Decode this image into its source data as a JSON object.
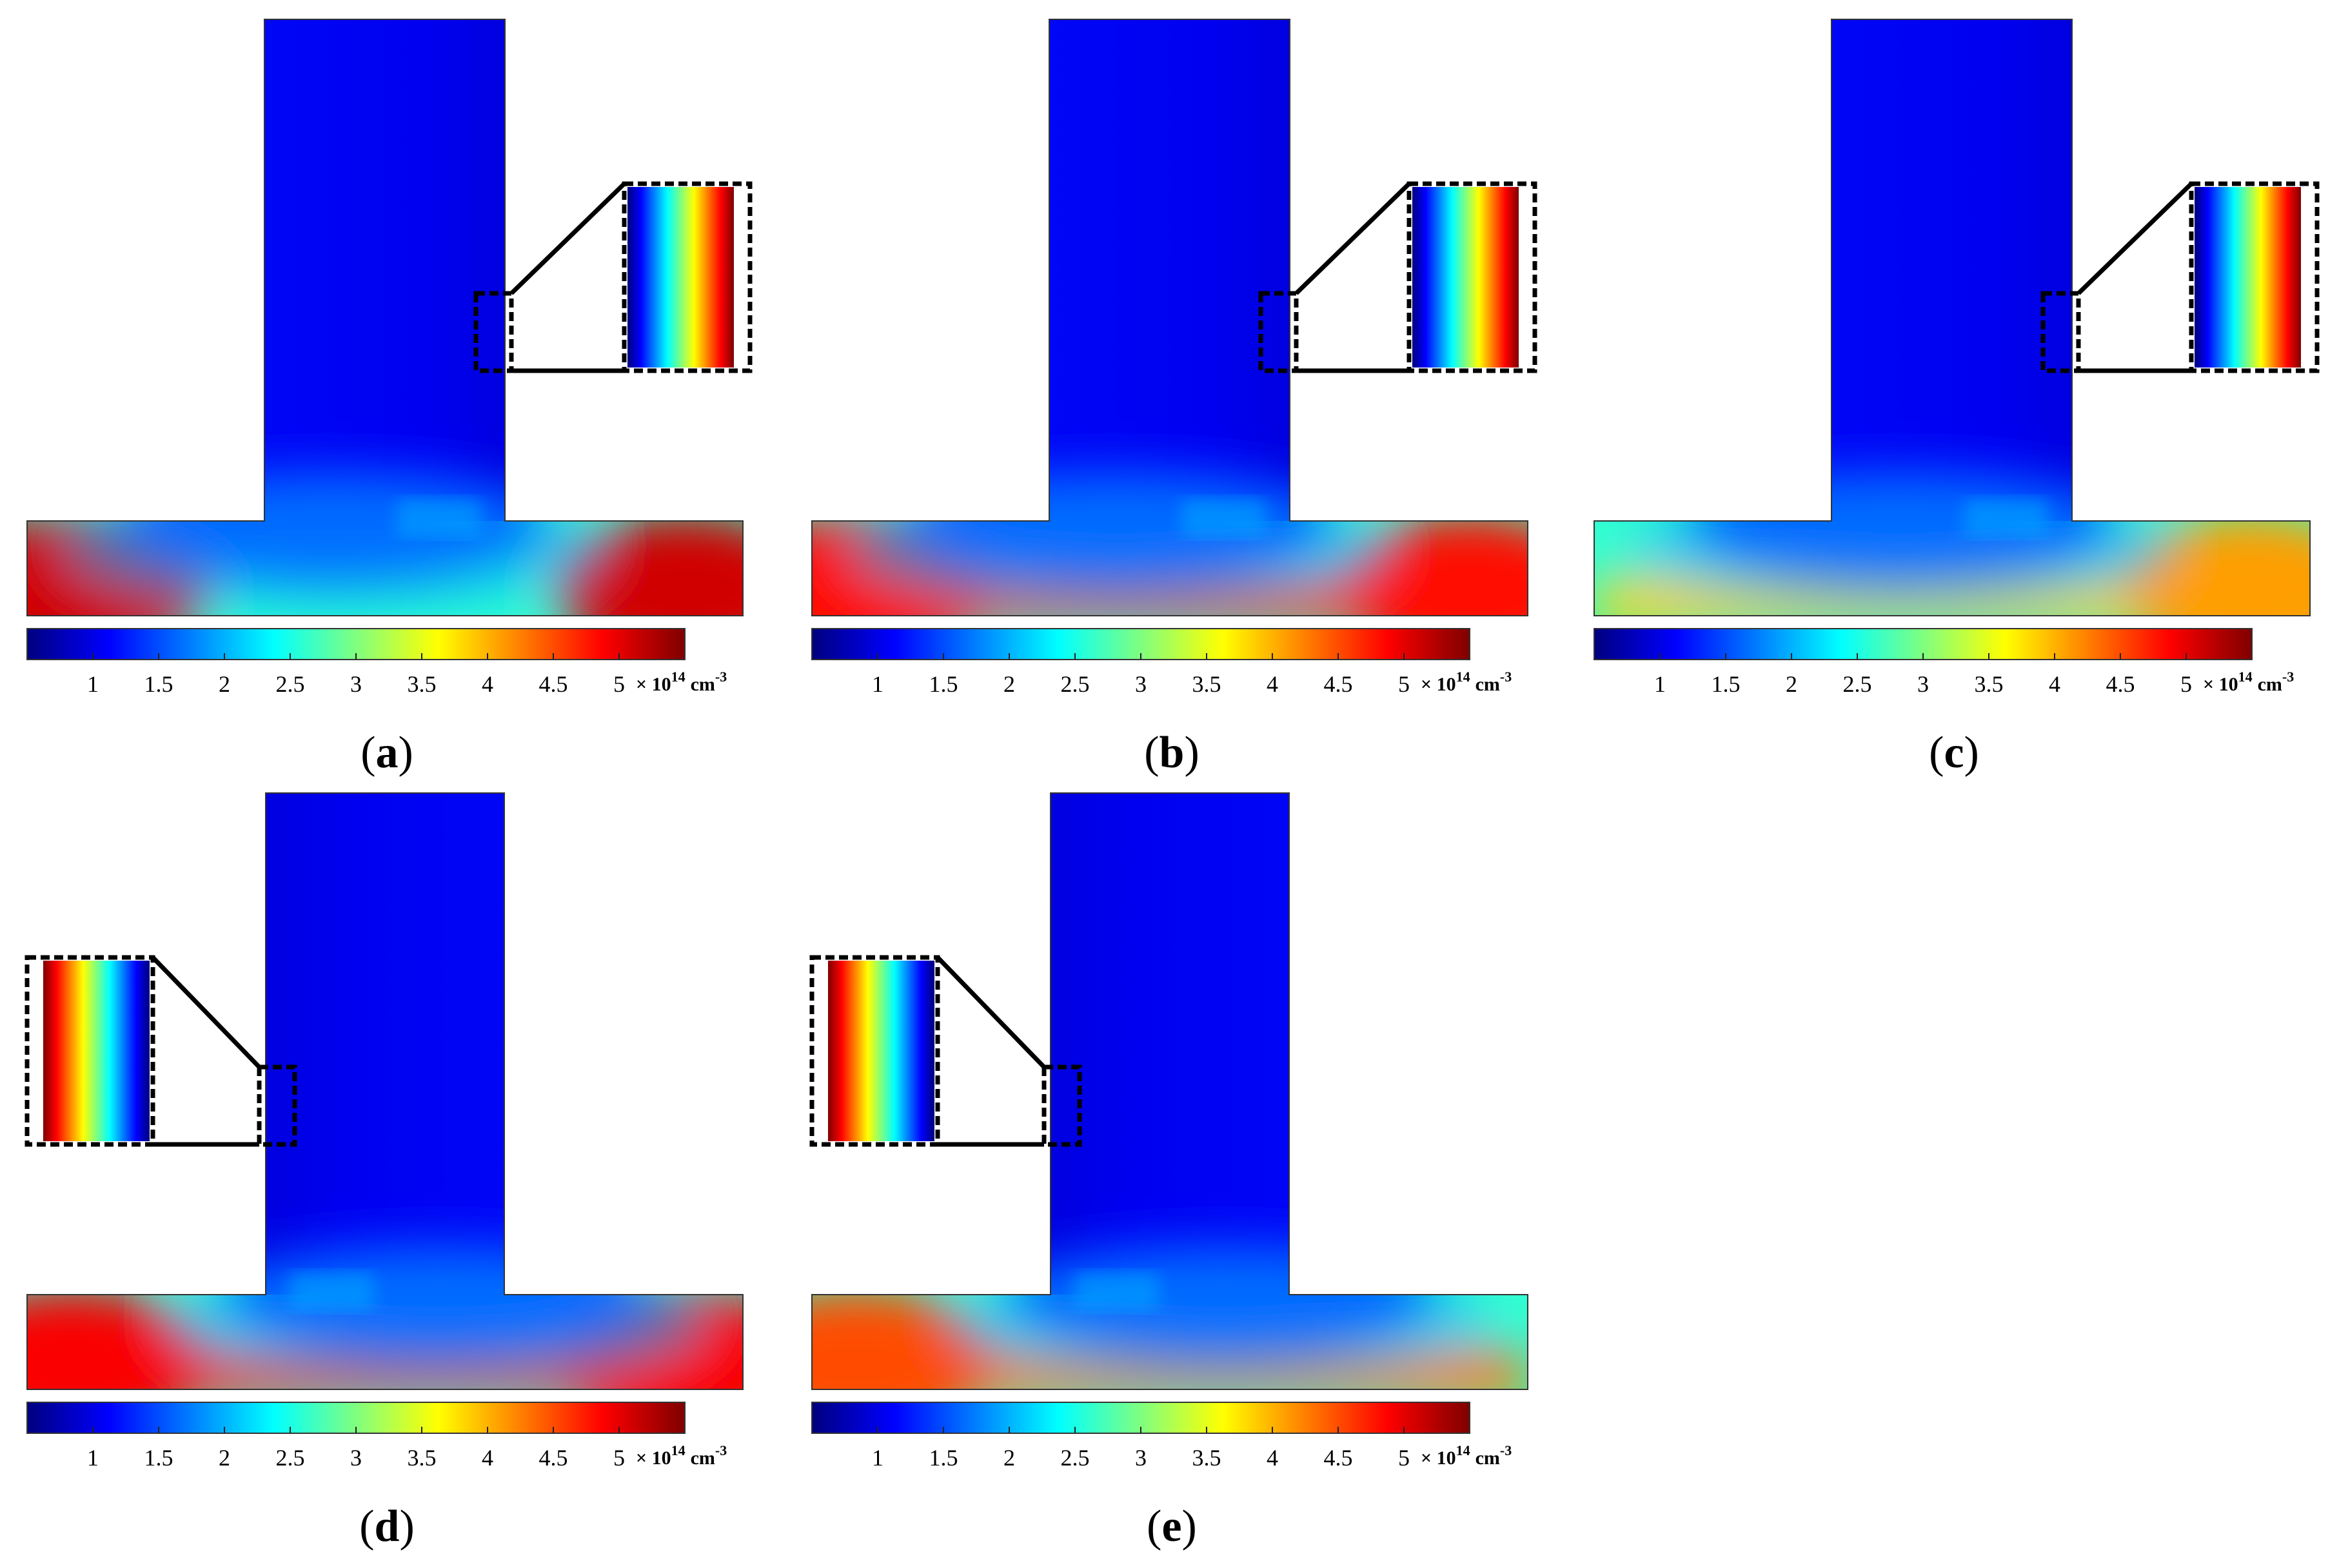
{
  "figure": {
    "panels": [
      {
        "id": "a",
        "label": "a",
        "inset_side": "right",
        "hot_spots": [
          "left",
          "right"
        ]
      },
      {
        "id": "b",
        "label": "b",
        "inset_side": "right",
        "hot_spots": [
          "left",
          "right",
          "bottom"
        ]
      },
      {
        "id": "c",
        "label": "c",
        "inset_side": "right",
        "hot_spots": [
          "bottom",
          "right"
        ]
      },
      {
        "id": "d",
        "label": "d",
        "inset_side": "left",
        "hot_spots": [
          "left",
          "right",
          "bottom"
        ]
      },
      {
        "id": "e",
        "label": "e",
        "inset_side": "left",
        "hot_spots": [
          "left",
          "bottom"
        ]
      }
    ]
  },
  "chart_data": {
    "type": "heatmap",
    "colormap": "jet",
    "colorbar": {
      "min": 0.5,
      "max": 5.5,
      "ticks": [
        "1",
        "1.5",
        "2",
        "2.5",
        "3",
        "3.5",
        "4",
        "4.5",
        "5"
      ],
      "tick_values": [
        1,
        1.5,
        2,
        2.5,
        3,
        3.5,
        4,
        4.5,
        5
      ],
      "multiplier": "× 10",
      "exponent": "14",
      "unit": "cm",
      "unit_exponent": "-3"
    },
    "colors": {
      "jet_stops": [
        "#00007f",
        "#0000ff",
        "#007fff",
        "#00ffff",
        "#7fff7f",
        "#ffff00",
        "#ff7f00",
        "#ff0000",
        "#7f0000"
      ],
      "domain_outline": "#333333",
      "inset_frame": "#000000"
    }
  }
}
